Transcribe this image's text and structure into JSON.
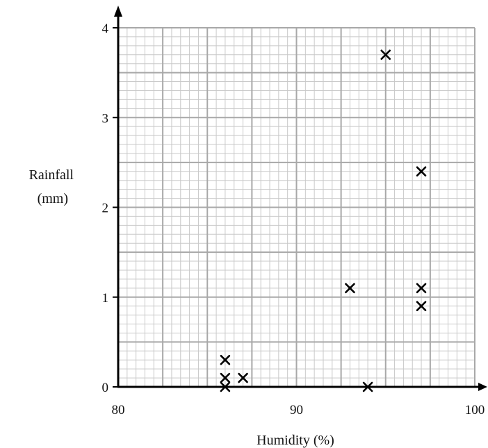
{
  "chart_data": {
    "type": "scatter",
    "title": "",
    "xlabel": "Humidity (%)",
    "ylabel_lines": [
      "Rainfall",
      "(mm)"
    ],
    "xlim": [
      80,
      100
    ],
    "ylim": [
      0,
      4
    ],
    "x_ticks": [
      {
        "value": 80,
        "label": "80"
      },
      {
        "value": 90,
        "label": "90"
      },
      {
        "value": 100,
        "label": "100"
      }
    ],
    "y_ticks": [
      {
        "value": 0,
        "label": "0"
      },
      {
        "value": 1,
        "label": "1"
      },
      {
        "value": 2,
        "label": "2"
      },
      {
        "value": 3,
        "label": "3"
      },
      {
        "value": 4,
        "label": "4"
      }
    ],
    "grid": true,
    "grid_major_x_step": 2.5,
    "grid_minor_x_step": 0.5,
    "grid_major_y_step": 0.5,
    "grid_minor_y_step": 0.1,
    "marker": "cross",
    "points": [
      {
        "x": 86,
        "y": 0.3
      },
      {
        "x": 86,
        "y": 0.1
      },
      {
        "x": 86,
        "y": 0.0
      },
      {
        "x": 87,
        "y": 0.1
      },
      {
        "x": 93,
        "y": 1.1
      },
      {
        "x": 94,
        "y": 0.0
      },
      {
        "x": 95,
        "y": 3.7
      },
      {
        "x": 97,
        "y": 2.4
      },
      {
        "x": 97,
        "y": 1.1
      },
      {
        "x": 97,
        "y": 0.9
      }
    ],
    "colors": {
      "grid_minor": "#c8c8c8",
      "grid_major": "#a8a8a8",
      "axis": "#000000",
      "marker": "#000000"
    }
  }
}
